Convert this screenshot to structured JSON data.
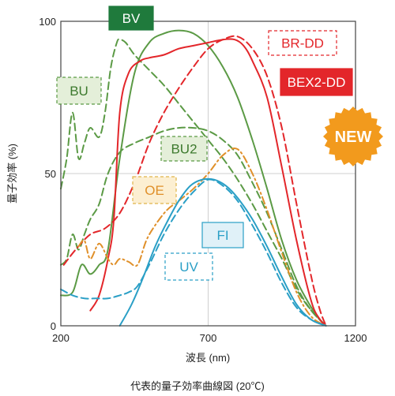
{
  "chart_data": {
    "type": "line",
    "title": "",
    "caption": "代表的量子効率曲線図 (20℃)",
    "xlabel": "波長 (nm)",
    "ylabel": "量子効率 (%)",
    "xlim": [
      200,
      1200
    ],
    "ylim": [
      0,
      100
    ],
    "x_ticks": [
      200,
      700,
      1200
    ],
    "y_ticks": [
      0,
      50,
      100
    ],
    "badge": "NEW",
    "colors": {
      "BV": "#5b9a45",
      "BU": "#5b9a45",
      "BU2": "#5b9a45",
      "BR-DD": "#e3262a",
      "BEX2-DD": "#e3262a",
      "OE": "#e0902a",
      "FI": "#2a9fc6",
      "UV": "#2a9fc6"
    },
    "series": [
      {
        "name": "BV",
        "style": "solid",
        "x": [
          200,
          240,
          270,
          300,
          330,
          360,
          400,
          450,
          500,
          550,
          600,
          650,
          700,
          750,
          800,
          850,
          900,
          950,
          1000,
          1050,
          1080,
          1100
        ],
        "y": [
          10,
          11,
          20,
          17,
          20,
          25,
          55,
          83,
          93,
          96,
          97,
          96,
          92,
          85,
          75,
          61,
          45,
          28,
          15,
          6,
          2,
          0
        ]
      },
      {
        "name": "BU",
        "style": "dashed",
        "x": [
          200,
          220,
          240,
          260,
          280,
          300,
          330,
          350,
          370,
          390,
          400,
          420,
          450,
          500,
          550,
          600,
          650,
          700,
          750,
          800,
          850,
          900,
          950,
          1000,
          1050,
          1100
        ],
        "y": [
          45,
          55,
          70,
          55,
          60,
          65,
          62,
          70,
          85,
          93,
          94,
          93,
          89,
          84,
          79,
          73,
          67,
          61,
          55,
          48,
          40,
          31,
          22,
          12,
          5,
          0
        ]
      },
      {
        "name": "BU2",
        "style": "dashed",
        "x": [
          200,
          220,
          240,
          260,
          280,
          300,
          330,
          360,
          400,
          450,
          500,
          550,
          600,
          650,
          700,
          750,
          800,
          850,
          900,
          950,
          1000,
          1050,
          1100
        ],
        "y": [
          20,
          22,
          30,
          25,
          30,
          35,
          40,
          50,
          57,
          60,
          62,
          64,
          65,
          65,
          64,
          61,
          56,
          47,
          37,
          25,
          13,
          5,
          0
        ]
      },
      {
        "name": "BR-DD",
        "style": "dashed",
        "x": [
          210,
          250,
          300,
          350,
          400,
          450,
          500,
          550,
          600,
          650,
          700,
          750,
          800,
          850,
          900,
          950,
          1000,
          1050,
          1080,
          1100
        ],
        "y": [
          20,
          25,
          30,
          32,
          37,
          47,
          60,
          70,
          78,
          85,
          91,
          94,
          95,
          91,
          82,
          65,
          40,
          16,
          5,
          0
        ]
      },
      {
        "name": "BEX2-DD",
        "style": "solid",
        "x": [
          300,
          330,
          360,
          380,
          400,
          430,
          470,
          500,
          550,
          600,
          650,
          700,
          750,
          790,
          820,
          850,
          900,
          950,
          1000,
          1050,
          1080,
          1100
        ],
        "y": [
          5,
          10,
          22,
          35,
          70,
          83,
          87,
          88,
          89,
          91,
          92,
          93,
          94,
          94,
          92,
          87,
          75,
          52,
          28,
          8,
          2,
          0
        ]
      },
      {
        "name": "OE",
        "style": "dashdot",
        "x": [
          260,
          280,
          300,
          330,
          360,
          380,
          400,
          430,
          460,
          490,
          520,
          560,
          600,
          650,
          700,
          750,
          800,
          850,
          900,
          950,
          1000,
          1050,
          1100
        ],
        "y": [
          26,
          28,
          22,
          27,
          22,
          20,
          22,
          21,
          20,
          28,
          33,
          38,
          41,
          45,
          50,
          56,
          58,
          50,
          38,
          24,
          11,
          3,
          0
        ]
      },
      {
        "name": "FI",
        "style": "solid",
        "x": [
          400,
          440,
          480,
          520,
          560,
          600,
          640,
          680,
          720,
          760,
          800,
          850,
          900,
          950,
          1000,
          1050,
          1100
        ],
        "y": [
          0,
          7,
          16,
          26,
          34,
          41,
          46,
          48,
          48,
          46,
          42,
          35,
          26,
          16,
          7,
          2,
          0
        ]
      },
      {
        "name": "UV",
        "style": "dashed",
        "x": [
          200,
          240,
          280,
          320,
          360,
          400,
          430,
          460,
          500,
          550,
          600,
          650,
          700,
          750,
          800,
          850,
          900,
          950,
          1000,
          1050,
          1100
        ],
        "y": [
          12,
          10,
          9,
          9,
          9,
          10,
          11,
          13,
          20,
          30,
          38,
          44,
          48,
          46,
          41,
          33,
          24,
          14,
          6,
          2,
          0
        ]
      }
    ]
  }
}
